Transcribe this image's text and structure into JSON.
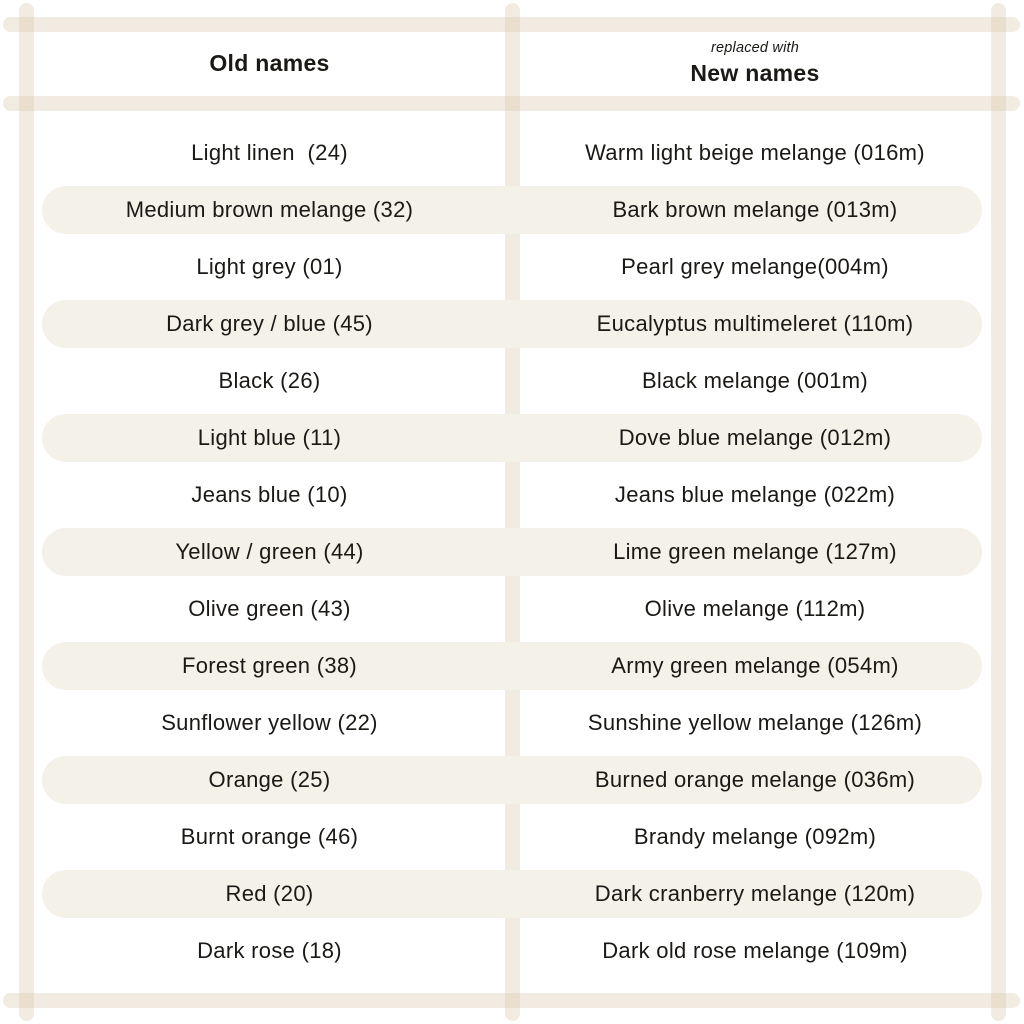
{
  "table": {
    "header": {
      "old_col": "Old names",
      "replaced_with": "replaced with",
      "new_col": "New names"
    },
    "rows": [
      {
        "old": "Light linen  (24)",
        "new": "Warm light beige melange (016m)"
      },
      {
        "old": "Medium brown melange (32)",
        "new": "Bark brown melange (013m)"
      },
      {
        "old": "Light grey (01)",
        "new": "Pearl grey melange(004m)"
      },
      {
        "old": "Dark grey / blue (45)",
        "new": "Eucalyptus multimeleret (110m)"
      },
      {
        "old": "Black (26)",
        "new": "Black melange (001m)"
      },
      {
        "old": "Light blue (11)",
        "new": "Dove blue melange (012m)"
      },
      {
        "old": "Jeans blue (10)",
        "new": "Jeans blue melange (022m)"
      },
      {
        "old": "Yellow / green (44)",
        "new": "Lime green melange (127m)"
      },
      {
        "old": "Olive green (43)",
        "new": "Olive melange (112m)"
      },
      {
        "old": "Forest green (38)",
        "new": "Army green melange (054m)"
      },
      {
        "old": "Sunflower yellow (22)",
        "new": "Sunshine yellow melange (126m)"
      },
      {
        "old": "Orange (25)",
        "new": "Burned orange melange (036m)"
      },
      {
        "old": "Burnt orange (46)",
        "new": "Brandy melange (092m)"
      },
      {
        "old": "Red (20)",
        "new": "Dark cranberry melange (120m)"
      },
      {
        "old": "Dark rose (18)",
        "new": "Dark old rose melange (109m)"
      }
    ]
  },
  "colors": {
    "background": "#ffffff",
    "frame_bar": "rgba(220, 203, 175, 0.38)",
    "row_pill": "#f4f1e9",
    "text": "#1b1915"
  }
}
